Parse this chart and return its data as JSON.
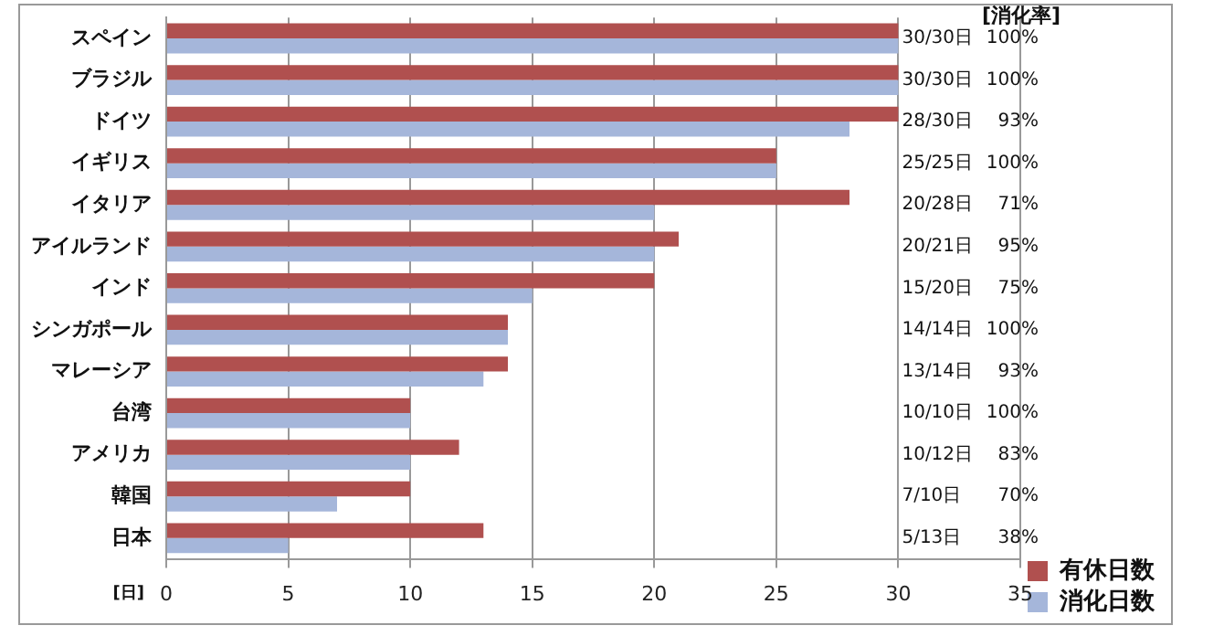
{
  "chart_data": {
    "type": "bar",
    "orientation": "horizontal",
    "xlabel": "[日]",
    "categories": [
      "スペイン",
      "ブラジル",
      "ドイツ",
      "イギリス",
      "イタリア",
      "アイルランド",
      "インド",
      "シンガポール",
      "マレーシア",
      "台湾",
      "アメリカ",
      "韓国",
      "日本"
    ],
    "series": [
      {
        "name": "有休日数",
        "color": "#b0504f",
        "values": [
          30,
          30,
          30,
          25,
          28,
          21,
          20,
          14,
          14,
          10,
          12,
          10,
          13
        ]
      },
      {
        "name": "消化日数",
        "color": "#a5b6da",
        "values": [
          30,
          30,
          28,
          25,
          20,
          20,
          15,
          14,
          13,
          10,
          10,
          7,
          5
        ]
      }
    ],
    "xlim": [
      0,
      35
    ],
    "xticks": [
      0,
      5,
      10,
      15,
      20,
      25,
      30,
      35
    ],
    "grid": "x",
    "legend": "bottom right",
    "annotations": [
      "[消化率]",
      "30/30日",
      "100%",
      "30/30日",
      "100%",
      "28/30日",
      "93%",
      "25/25日",
      "100%",
      "20/28日",
      "71%",
      "20/21日",
      "95%",
      "15/20日",
      "75%",
      "14/14日",
      "100%",
      "13/14日",
      "93%",
      "10/10日",
      "100%",
      "10/12日",
      "83%",
      "7/10日",
      "70%",
      "5/13日",
      "38%"
    ]
  }
}
